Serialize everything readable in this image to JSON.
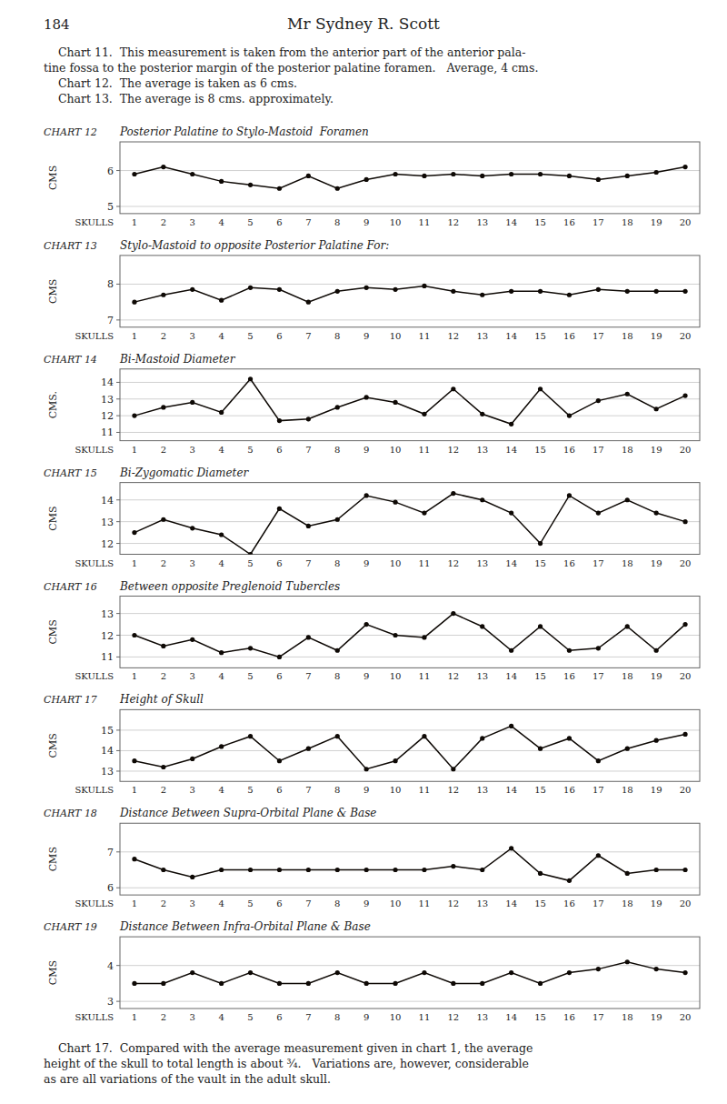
{
  "page_number": "184",
  "title": "Mr Sydney R. Scott",
  "intro": [
    "    Chart 11.  This measurement is taken from the anterior part of the anterior pala-",
    "tine fossa to the posterior margin of the posterior palatine foramen.   Average, 4 cms.",
    "    Chart 12.  The average is taken as 6 cms.",
    "    Chart 13.  The average is 8 cms. approximately."
  ],
  "footer": [
    "    Chart 17.  Compared with the average measurement given in chart 1, the average",
    "height of the skull to total length is about ¾.   Variations are, however, considerable",
    "as are all variations of the vault in the adult skull."
  ],
  "chart_data": [
    {
      "type": "line",
      "label": "CHART 12",
      "title": "Posterior Palatine to Stylo-Mastoid  Foramen",
      "categories": [
        "1",
        "2",
        "3",
        "4",
        "5",
        "6",
        "7",
        "8",
        "9",
        "10",
        "11",
        "12",
        "13",
        "14",
        "15",
        "16",
        "17",
        "18",
        "19",
        "20"
      ],
      "xlabel": "SKULLS",
      "ylabel": "CMS",
      "color": "#0e0905",
      "marker": "circle",
      "grid": true,
      "values": [
        5.9,
        6.1,
        5.9,
        5.7,
        5.6,
        5.5,
        5.85,
        5.5,
        5.75,
        5.9,
        5.85,
        5.9,
        5.85,
        5.9,
        5.9,
        5.85,
        5.75,
        5.85,
        5.95,
        6.1
      ],
      "ylim": [
        4.8,
        6.8
      ],
      "yticks": [
        5,
        6
      ]
    },
    {
      "type": "line",
      "label": "CHART 13",
      "title": "Stylo-Mastoid to opposite Posterior Palatine For:",
      "categories": [
        "1",
        "2",
        "3",
        "4",
        "5",
        "6",
        "7",
        "8",
        "9",
        "10",
        "11",
        "12",
        "13",
        "14",
        "15",
        "16",
        "17",
        "18",
        "19",
        "20"
      ],
      "xlabel": "SKULLS",
      "ylabel": "CMS",
      "color": "#0e0905",
      "marker": "circle",
      "grid": true,
      "values": [
        7.5,
        7.7,
        7.85,
        7.55,
        7.9,
        7.85,
        7.5,
        7.8,
        7.9,
        7.85,
        7.95,
        7.8,
        7.7,
        7.8,
        7.8,
        7.7,
        7.85,
        7.8,
        7.8,
        7.8
      ],
      "ylim": [
        6.8,
        8.8
      ],
      "yticks": [
        7,
        8
      ]
    },
    {
      "type": "line",
      "label": "CHART 14",
      "title": "Bi-Mastoid Diameter",
      "categories": [
        "1",
        "2",
        "3",
        "4",
        "5",
        "6",
        "7",
        "8",
        "9",
        "10",
        "11",
        "12",
        "13",
        "14",
        "15",
        "16",
        "17",
        "18",
        "19",
        "20"
      ],
      "xlabel": "SKULLS",
      "ylabel": "CMS.",
      "color": "#0e0905",
      "marker": "circle",
      "grid": true,
      "values": [
        12.0,
        12.5,
        12.8,
        12.2,
        14.2,
        11.7,
        11.8,
        12.5,
        13.1,
        12.8,
        12.1,
        13.6,
        12.1,
        11.5,
        13.6,
        12.0,
        12.9,
        13.3,
        12.4,
        13.2
      ],
      "ylim": [
        10.5,
        14.8
      ],
      "yticks": [
        11,
        12,
        13,
        14
      ]
    },
    {
      "type": "line",
      "label": "CHART 15",
      "title": "Bi-Zygomatic Diameter",
      "categories": [
        "1",
        "2",
        "3",
        "4",
        "5",
        "6",
        "7",
        "8",
        "9",
        "10",
        "11",
        "12",
        "13",
        "14",
        "15",
        "16",
        "17",
        "18",
        "19",
        "20"
      ],
      "xlabel": "SKULLS",
      "ylabel": "CMS",
      "color": "#0e0905",
      "marker": "circle",
      "grid": true,
      "values": [
        12.5,
        13.1,
        12.7,
        12.4,
        11.5,
        13.6,
        12.8,
        13.1,
        14.2,
        13.9,
        13.4,
        14.3,
        14.0,
        13.4,
        12.0,
        14.2,
        13.4,
        14.0,
        13.4,
        13.0
      ],
      "ylim": [
        11.5,
        14.8
      ],
      "yticks": [
        12,
        13,
        14
      ]
    },
    {
      "type": "line",
      "label": "CHART 16",
      "title": "Between opposite Preglenoid Tubercles",
      "categories": [
        "1",
        "2",
        "3",
        "4",
        "5",
        "6",
        "7",
        "8",
        "9",
        "10",
        "11",
        "12",
        "13",
        "14",
        "15",
        "16",
        "17",
        "18",
        "19",
        "20"
      ],
      "xlabel": "SKULLS",
      "ylabel": "CMS",
      "color": "#0e0905",
      "marker": "circle",
      "grid": true,
      "values": [
        12.0,
        11.5,
        11.8,
        11.2,
        11.4,
        11.0,
        11.9,
        11.3,
        12.5,
        12.0,
        11.9,
        13.0,
        12.4,
        11.3,
        12.4,
        11.3,
        11.4,
        12.4,
        11.3,
        12.5
      ],
      "ylim": [
        10.5,
        13.8
      ],
      "yticks": [
        11,
        12,
        13
      ]
    },
    {
      "type": "line",
      "label": "CHART 17",
      "title": "Height of Skull",
      "categories": [
        "1",
        "2",
        "3",
        "4",
        "5",
        "6",
        "7",
        "8",
        "9",
        "10",
        "11",
        "12",
        "13",
        "14",
        "15",
        "16",
        "17",
        "18",
        "19",
        "20"
      ],
      "xlabel": "SKULLS",
      "ylabel": "CMS",
      "color": "#0e0905",
      "marker": "circle",
      "grid": true,
      "values": [
        13.5,
        13.2,
        13.6,
        14.2,
        14.7,
        13.5,
        14.1,
        14.7,
        13.1,
        13.5,
        14.7,
        13.1,
        14.6,
        15.2,
        14.1,
        14.6,
        13.5,
        14.1,
        14.5,
        14.8
      ],
      "ylim": [
        12.5,
        16.0
      ],
      "yticks": [
        13,
        14,
        15
      ]
    },
    {
      "type": "line",
      "label": "CHART 18",
      "title": "Distance Between Supra-Orbital Plane & Base",
      "categories": [
        "1",
        "2",
        "3",
        "4",
        "5",
        "6",
        "7",
        "8",
        "9",
        "10",
        "11",
        "12",
        "13",
        "14",
        "15",
        "16",
        "17",
        "18",
        "19",
        "20"
      ],
      "xlabel": "SKULLS",
      "ylabel": "CMS",
      "color": "#0e0905",
      "marker": "circle",
      "grid": true,
      "values": [
        6.8,
        6.5,
        6.3,
        6.5,
        6.5,
        6.5,
        6.5,
        6.5,
        6.5,
        6.5,
        6.5,
        6.6,
        6.5,
        7.1,
        6.4,
        6.2,
        6.9,
        6.4,
        6.5,
        6.5
      ],
      "ylim": [
        5.8,
        7.8
      ],
      "yticks": [
        6,
        7
      ]
    },
    {
      "type": "line",
      "label": "CHART 19",
      "title": "Distance Between Infra-Orbital Plane & Base",
      "categories": [
        "1",
        "2",
        "3",
        "4",
        "5",
        "6",
        "7",
        "8",
        "9",
        "10",
        "11",
        "12",
        "13",
        "14",
        "15",
        "16",
        "17",
        "18",
        "19",
        "20"
      ],
      "xlabel": "SKULLS",
      "ylabel": "CMS",
      "color": "#0e0905",
      "marker": "circle",
      "grid": true,
      "values": [
        3.5,
        3.5,
        3.8,
        3.5,
        3.8,
        3.5,
        3.5,
        3.8,
        3.5,
        3.5,
        3.8,
        3.5,
        3.5,
        3.8,
        3.5,
        3.8,
        3.9,
        4.1,
        3.9,
        3.8
      ],
      "ylim": [
        2.8,
        4.8
      ],
      "yticks": [
        3,
        4
      ]
    }
  ]
}
